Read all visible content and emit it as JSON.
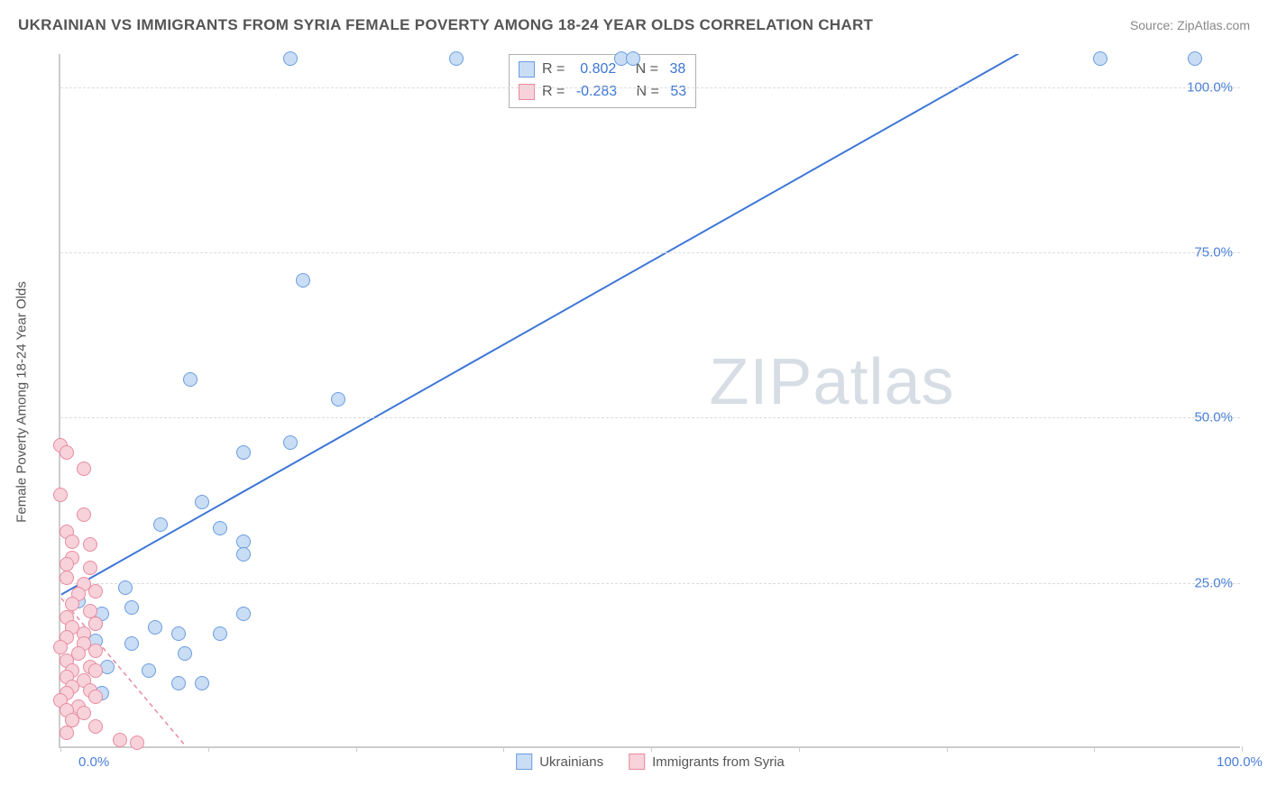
{
  "header": {
    "title": "UKRAINIAN VS IMMIGRANTS FROM SYRIA FEMALE POVERTY AMONG 18-24 YEAR OLDS CORRELATION CHART",
    "source": "Source: ZipAtlas.com"
  },
  "chart": {
    "type": "scatter",
    "y_axis_label": "Female Poverty Among 18-24 Year Olds",
    "xlim": [
      0,
      100
    ],
    "ylim": [
      0,
      105
    ],
    "x_ticks": [
      0,
      50,
      100
    ],
    "x_tick_labels": [
      "0.0%",
      "",
      "100.0%"
    ],
    "x_minor_ticks": [
      12.5,
      25,
      37.5,
      62.5,
      75,
      87.5
    ],
    "y_ticks": [
      25,
      50,
      75,
      100
    ],
    "y_tick_labels": [
      "25.0%",
      "50.0%",
      "75.0%",
      "100.0%"
    ],
    "background_color": "#ffffff",
    "grid_color": "#dddddd",
    "axis_color": "#cccccc",
    "marker_radius": 8,
    "marker_stroke_width": 1.5,
    "series": [
      {
        "name": "Ukrainians",
        "fill": "#c9ddf5",
        "stroke": "#6b9de0",
        "points": [
          [
            19.5,
            104.0
          ],
          [
            33.5,
            104.0
          ],
          [
            47.5,
            104.0
          ],
          [
            48.5,
            104.0
          ],
          [
            88.0,
            104.0
          ],
          [
            96.0,
            104.0
          ],
          [
            20.5,
            70.5
          ],
          [
            11.0,
            55.5
          ],
          [
            23.5,
            52.5
          ],
          [
            19.5,
            46.0
          ],
          [
            15.5,
            44.5
          ],
          [
            12.0,
            37.0
          ],
          [
            8.5,
            33.5
          ],
          [
            13.5,
            33.0
          ],
          [
            15.5,
            31.0
          ],
          [
            15.5,
            29.0
          ],
          [
            5.5,
            24.0
          ],
          [
            1.5,
            22.0
          ],
          [
            6.0,
            21.0
          ],
          [
            3.5,
            20.0
          ],
          [
            15.5,
            20.0
          ],
          [
            3.0,
            18.5
          ],
          [
            8.0,
            18.0
          ],
          [
            10.0,
            17.0
          ],
          [
            13.5,
            17.0
          ],
          [
            3.0,
            16.0
          ],
          [
            6.0,
            15.5
          ],
          [
            10.5,
            14.0
          ],
          [
            4.0,
            12.0
          ],
          [
            7.5,
            11.5
          ],
          [
            12.0,
            9.5
          ],
          [
            10.0,
            9.5
          ],
          [
            3.5,
            8.0
          ],
          [
            1.0,
            4.0
          ]
        ],
        "trend": {
          "x1": 0,
          "y1": 23.0,
          "x2": 100,
          "y2": 124.0,
          "color": "#3d76d6",
          "width": 2,
          "dash": "none"
        }
      },
      {
        "name": "Immigrants from Syria",
        "fill": "#f7d2da",
        "stroke": "#e88ba0",
        "points": [
          [
            0.0,
            45.5
          ],
          [
            0.5,
            44.5
          ],
          [
            2.0,
            42.0
          ],
          [
            0.0,
            38.0
          ],
          [
            2.0,
            35.0
          ],
          [
            0.5,
            32.5
          ],
          [
            1.0,
            31.0
          ],
          [
            2.5,
            30.5
          ],
          [
            1.0,
            28.5
          ],
          [
            0.5,
            27.5
          ],
          [
            2.5,
            27.0
          ],
          [
            0.5,
            25.5
          ],
          [
            2.0,
            24.5
          ],
          [
            1.5,
            23.0
          ],
          [
            3.0,
            23.5
          ],
          [
            1.0,
            21.5
          ],
          [
            2.5,
            20.5
          ],
          [
            0.5,
            19.5
          ],
          [
            1.0,
            18.0
          ],
          [
            3.0,
            18.5
          ],
          [
            2.0,
            17.0
          ],
          [
            0.5,
            16.5
          ],
          [
            0.0,
            15.0
          ],
          [
            2.0,
            15.5
          ],
          [
            3.0,
            14.5
          ],
          [
            1.5,
            14.0
          ],
          [
            0.5,
            13.0
          ],
          [
            2.5,
            12.0
          ],
          [
            1.0,
            11.5
          ],
          [
            3.0,
            11.5
          ],
          [
            0.5,
            10.5
          ],
          [
            2.0,
            10.0
          ],
          [
            1.0,
            9.0
          ],
          [
            0.5,
            8.0
          ],
          [
            2.5,
            8.5
          ],
          [
            0.0,
            7.0
          ],
          [
            3.0,
            7.5
          ],
          [
            1.5,
            6.0
          ],
          [
            0.5,
            5.5
          ],
          [
            2.0,
            5.0
          ],
          [
            1.0,
            4.0
          ],
          [
            3.0,
            3.0
          ],
          [
            0.5,
            2.0
          ],
          [
            5.0,
            1.0
          ],
          [
            6.5,
            0.5
          ]
        ],
        "trend": {
          "x1": 0,
          "y1": 22.5,
          "x2": 12,
          "y2": -3.0,
          "color": "#e88ba0",
          "width": 1.5,
          "dash": "5,4"
        }
      }
    ],
    "stats_box": {
      "rows": [
        {
          "swatch_fill": "#c9ddf5",
          "swatch_stroke": "#6b9de0",
          "r_label": "R = ",
          "r_value": " 0.802",
          "n_label": "   N = ",
          "n_value": "38"
        },
        {
          "swatch_fill": "#f7d2da",
          "swatch_stroke": "#e88ba0",
          "r_label": "R = ",
          "r_value": "-0.283",
          "n_label": "   N = ",
          "n_value": "53"
        }
      ]
    },
    "bottom_legend": [
      {
        "swatch_fill": "#c9ddf5",
        "swatch_stroke": "#6b9de0",
        "label": "Ukrainians"
      },
      {
        "swatch_fill": "#f7d2da",
        "swatch_stroke": "#e88ba0",
        "label": "Immigrants from Syria"
      }
    ],
    "watermark": {
      "text_bold": "ZIP",
      "text_thin": "atlas"
    }
  }
}
